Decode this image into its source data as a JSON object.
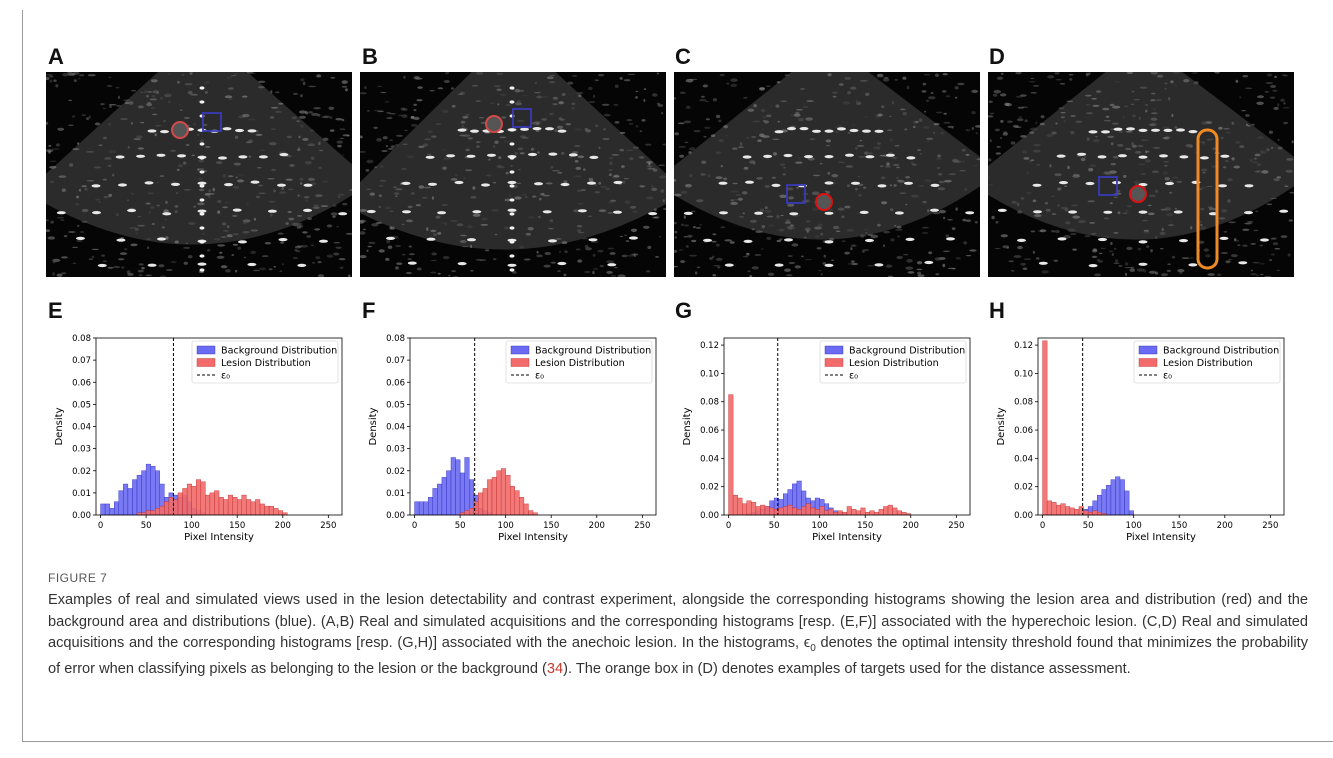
{
  "panels_top": [
    {
      "letter": "A",
      "kind": "real"
    },
    {
      "letter": "B",
      "kind": "simulated"
    },
    {
      "letter": "C",
      "kind": "real"
    },
    {
      "letter": "D",
      "kind": "simulated"
    }
  ],
  "panels_bottom_letters": [
    "E",
    "F",
    "G",
    "H"
  ],
  "colors": {
    "background": "#6a6af2",
    "lesion": "#f26a6a",
    "edge_bg": "#2b2bbf",
    "edge_lesion": "#bf2b2b",
    "orange": "#f08a24"
  },
  "hist_legend": {
    "background": "Background Distribution",
    "lesion": "Lesion Distribution",
    "threshold": "ε₀"
  },
  "chart_data": [
    {
      "panel": "E",
      "type": "bar",
      "xlabel": "Pixel Intensity",
      "ylabel": "Density",
      "xlim": [
        -5,
        265
      ],
      "ylim": [
        0,
        0.08
      ],
      "xticks": [
        0,
        50,
        100,
        150,
        200,
        250
      ],
      "yticks": [
        "0.00",
        "0.01",
        "0.02",
        "0.03",
        "0.04",
        "0.05",
        "0.06",
        "0.07",
        "0.08"
      ],
      "threshold": 80,
      "bin_width": 5,
      "series": [
        {
          "name": "Background Distribution",
          "start": 0,
          "values": [
            0.005,
            0.005,
            0.003,
            0.006,
            0.011,
            0.014,
            0.012,
            0.016,
            0.018,
            0.02,
            0.023,
            0.022,
            0.02,
            0.014,
            0.008,
            0.01,
            0.009,
            0.008,
            0.009,
            0.006,
            0.003,
            0.002,
            0.001
          ]
        },
        {
          "name": "Lesion Distribution",
          "start": 40,
          "values": [
            0.001,
            0.001,
            0.002,
            0.002,
            0.003,
            0.004,
            0.006,
            0.008,
            0.007,
            0.01,
            0.012,
            0.014,
            0.013,
            0.016,
            0.015,
            0.009,
            0.01,
            0.011,
            0.008,
            0.007,
            0.009,
            0.008,
            0.007,
            0.009,
            0.007,
            0.006,
            0.007,
            0.005,
            0.004,
            0.004,
            0.003,
            0.002,
            0.001
          ]
        }
      ]
    },
    {
      "panel": "F",
      "type": "bar",
      "xlabel": "Pixel Intensity",
      "ylabel": "Density",
      "xlim": [
        -5,
        265
      ],
      "ylim": [
        0,
        0.08
      ],
      "xticks": [
        0,
        50,
        100,
        150,
        200,
        250
      ],
      "yticks": [
        "0.00",
        "0.01",
        "0.02",
        "0.03",
        "0.04",
        "0.05",
        "0.06",
        "0.07",
        "0.08"
      ],
      "threshold": 66,
      "bin_width": 5,
      "series": [
        {
          "name": "Background Distribution",
          "start": 0,
          "values": [
            0.006,
            0.006,
            0.006,
            0.008,
            0.012,
            0.014,
            0.017,
            0.02,
            0.026,
            0.025,
            0.019,
            0.026,
            0.016,
            0.009,
            0.003,
            0.002,
            0.001
          ]
        },
        {
          "name": "Lesion Distribution",
          "start": 50,
          "values": [
            0.001,
            0.002,
            0.003,
            0.006,
            0.01,
            0.012,
            0.016,
            0.017,
            0.02,
            0.021,
            0.018,
            0.013,
            0.011,
            0.008,
            0.005,
            0.002,
            0.001
          ]
        }
      ]
    },
    {
      "panel": "G",
      "type": "bar",
      "xlabel": "Pixel Intensity",
      "ylabel": "Density",
      "xlim": [
        -5,
        265
      ],
      "ylim": [
        0,
        0.125
      ],
      "xticks": [
        0,
        50,
        100,
        150,
        200,
        250
      ],
      "yticks": [
        "0.00",
        "0.02",
        "0.04",
        "0.06",
        "0.08",
        "0.10",
        "0.12"
      ],
      "threshold": 54,
      "bin_width": 5,
      "series": [
        {
          "name": "Background Distribution",
          "start": 20,
          "values": [
            0.001,
            0.002,
            0.003,
            0.004,
            0.006,
            0.01,
            0.012,
            0.011,
            0.015,
            0.018,
            0.022,
            0.024,
            0.017,
            0.012,
            0.01,
            0.012,
            0.011,
            0.008,
            0.005,
            0.003,
            0.002,
            0.001
          ]
        },
        {
          "name": "Lesion Distribution",
          "start": 0,
          "values": [
            0.085,
            0.014,
            0.012,
            0.008,
            0.01,
            0.009,
            0.006,
            0.007,
            0.006,
            0.005,
            0.004,
            0.005,
            0.006,
            0.007,
            0.005,
            0.004,
            0.006,
            0.008,
            0.005,
            0.004,
            0.006,
            0.003,
            0.004,
            0.002,
            0.003,
            0.002,
            0.006,
            0.004,
            0.003,
            0.005,
            0.002,
            0.003,
            0.002,
            0.004,
            0.006,
            0.007,
            0.005,
            0.003,
            0.002,
            0.001
          ]
        }
      ]
    },
    {
      "panel": "H",
      "type": "bar",
      "xlabel": "Pixel Intensity",
      "ylabel": "Density",
      "xlim": [
        -5,
        265
      ],
      "ylim": [
        0,
        0.125
      ],
      "xticks": [
        0,
        50,
        100,
        150,
        200,
        250
      ],
      "yticks": [
        "0.00",
        "0.02",
        "0.04",
        "0.06",
        "0.08",
        "0.10",
        "0.12"
      ],
      "threshold": 44,
      "bin_width": 5,
      "series": [
        {
          "name": "Background Distribution",
          "start": 45,
          "values": [
            0.004,
            0.006,
            0.01,
            0.014,
            0.018,
            0.021,
            0.025,
            0.027,
            0.025,
            0.017,
            0.003
          ]
        },
        {
          "name": "Lesion Distribution",
          "start": 0,
          "values": [
            0.123,
            0.01,
            0.009,
            0.007,
            0.008,
            0.006,
            0.005,
            0.004,
            0.006,
            0.003,
            0.002,
            0.003,
            0.002,
            0.001
          ]
        }
      ]
    }
  ],
  "caption_label": "FIGURE 7",
  "caption": {
    "p1": "Examples of real and simulated views used in the lesion detectability and contrast experiment, alongside the corresponding histograms showing the lesion area and distribution (red) and the background area and distributions (blue). (A,B) Real and simulated acquisitions and the corresponding histograms [resp. (E,F)] associated with the hyperechoic lesion. (C,D) Real and simulated acquisitions and the corresponding histograms [resp. (G,H)] associated with the anechoic lesion. In the histograms, ϵ",
    "sub": "0",
    "p2": " denotes the optimal intensity threshold found that minimizes the probability of error when classifying pixels as belonging to the lesion or the background (",
    "ref": "34",
    "p3": "). The orange box in (D) denotes examples of targets used for the distance assessment."
  }
}
